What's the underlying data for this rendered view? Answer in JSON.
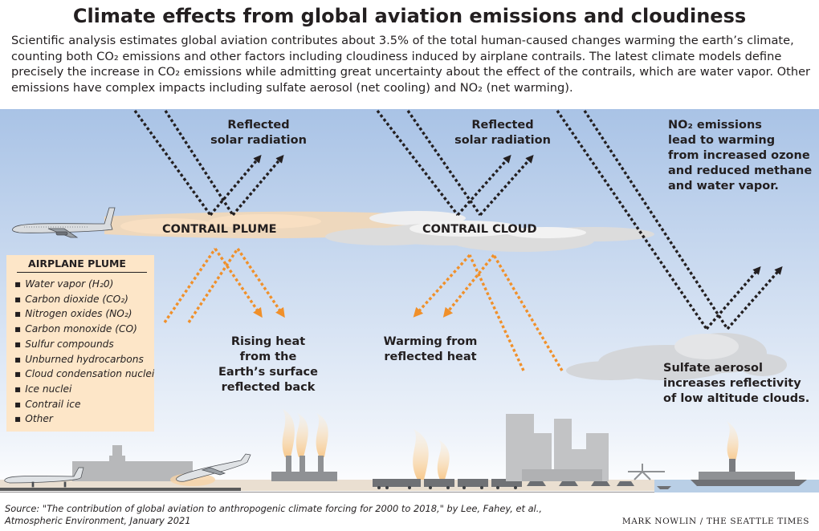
{
  "title": "Climate effects from global aviation emissions and cloudiness",
  "intro": "Scientific analysis estimates global aviation contributes about 3.5% of the total human-caused changes warming the earth’s climate, counting both CO₂ emissions and other factors including cloudiness induced by airplane contrails. The latest climate models define precisely the increase in CO₂ emissions while admitting great uncertainty about the effect of the contrails, which are water vapor. Other emissions have complex  impacts including sulfate aerosol (net cooling) and NO₂ (net warming).",
  "labels": {
    "reflected_1": [
      "Reflected",
      "solar radiation"
    ],
    "reflected_2": [
      "Reflected",
      "solar radiation"
    ],
    "no2": [
      "NO₂ emissions",
      "lead to warming",
      "from increased ozone",
      "and reduced methane",
      "and water vapor."
    ],
    "contrail_plume": "CONTRAIL PLUME",
    "contrail_cloud": "CONTRAIL CLOUD",
    "rising_heat": [
      "Rising heat",
      "from the",
      "Earth’s surface",
      "reflected back"
    ],
    "warming": [
      "Warming from",
      "reflected heat"
    ],
    "sulfate": [
      "Sulfate aerosol",
      "increases reflectivity",
      "of low altitude clouds."
    ]
  },
  "legend": {
    "title": "AIRPLANE PLUME",
    "items": [
      "Water vapor (H₂0)",
      "Carbon dioxide (CO₂)",
      "Nitrogen oxides (NO₂)",
      "Carbon monoxide (CO)",
      "Sulfur compounds",
      "Unburned hydrocarbons",
      "Cloud condensation nuclei",
      "Ice nuclei",
      "Contrail ice",
      "Other"
    ]
  },
  "source": [
    "Source: \"The contribution of global aviation to anthropogenic climate forcing for 2000 to 2018,\" by Lee, Fahey, et al.,",
    "Atmospheric Environment, January 2021"
  ],
  "credit": "MARK NOWLIN / THE SEATTLE TIMES",
  "colors": {
    "sky_top": "#a9c3e6",
    "sky_bottom": "#eef3fa",
    "arrow_dark": "#231f20",
    "arrow_heat": "#f0902a",
    "cloud": "#dcdcdc",
    "plume": "#f6d8b4",
    "legend_bg": "#fde6c8",
    "ground": "#eadfd1"
  },
  "icons": [
    "airplane-icon",
    "airplane-takeoff-icon",
    "factory-icon",
    "train-icon",
    "car-icon",
    "crane-icon",
    "ship-icon",
    "building-icon"
  ]
}
